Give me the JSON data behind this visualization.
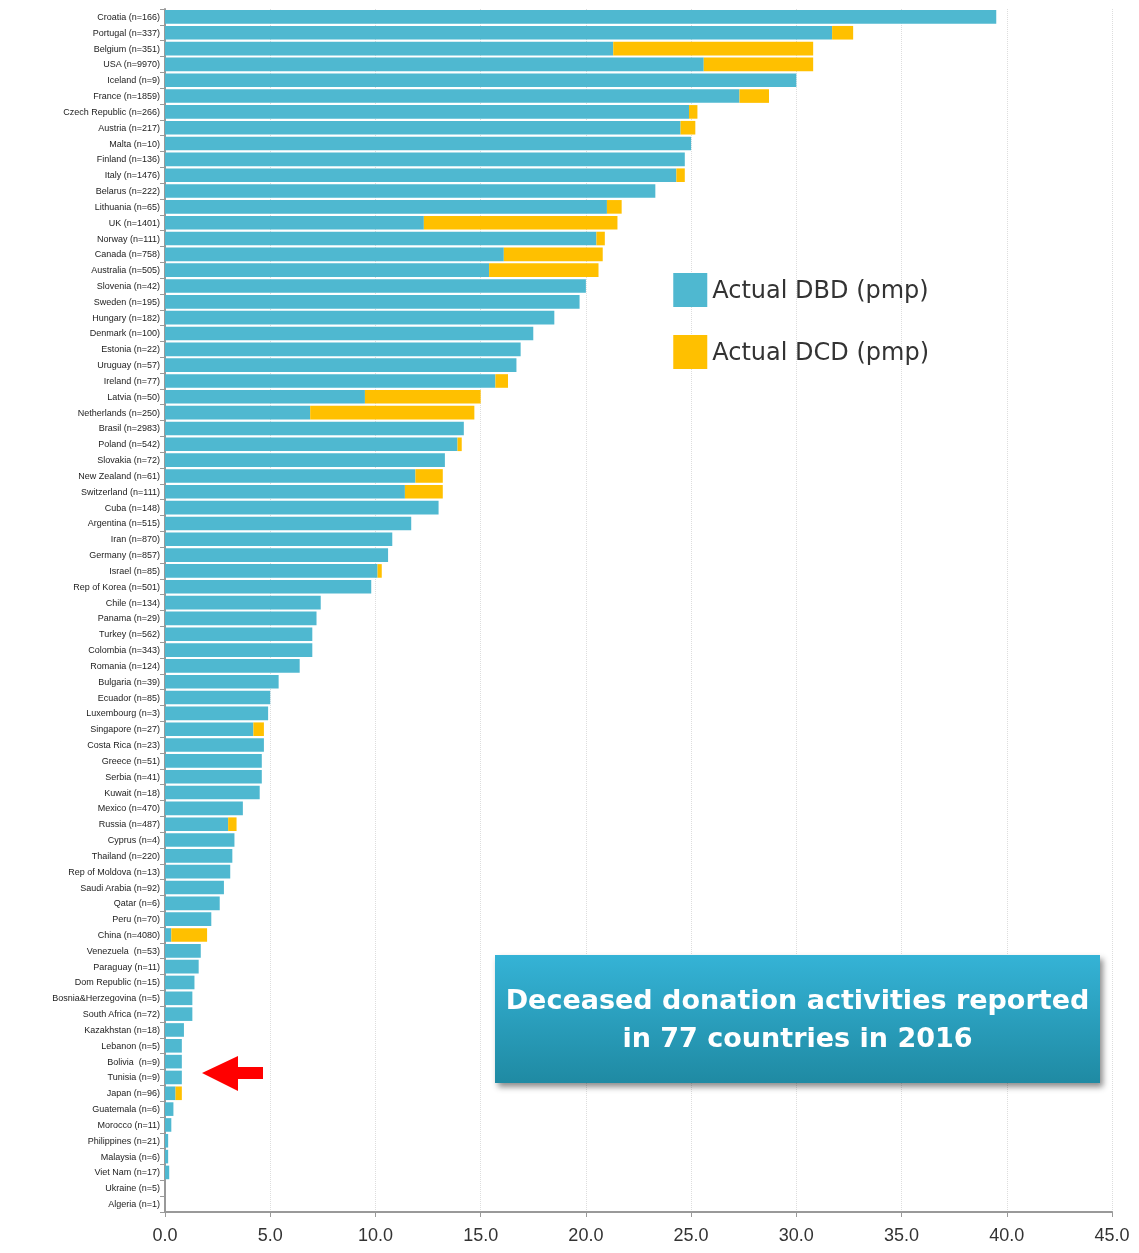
{
  "chart_data": {
    "type": "bar",
    "orientation": "horizontal",
    "stacked": true,
    "categories": [
      "Croatia (n=166)",
      "Portugal (n=337)",
      "Belgium (n=351)",
      "USA (n=9970)",
      "Iceland (n=9)",
      "France (n=1859)",
      "Czech Republic (n=266)",
      "Austria (n=217)",
      "Malta (n=10)",
      "Finland (n=136)",
      "Italy (n=1476)",
      "Belarus (n=222)",
      "Lithuania (n=65)",
      "UK (n=1401)",
      "Norway (n=111)",
      "Canada (n=758)",
      "Australia (n=505)",
      "Slovenia (n=42)",
      "Sweden (n=195)",
      "Hungary (n=182)",
      "Denmark (n=100)",
      "Estonia (n=22)",
      "Uruguay (n=57)",
      "Ireland (n=77)",
      "Latvia (n=50)",
      "Netherlands (n=250)",
      "Brasil (n=2983)",
      "Poland (n=542)",
      "Slovakia (n=72)",
      "New Zealand (n=61)",
      "Switzerland (n=111)",
      "Cuba (n=148)",
      "Argentina (n=515)",
      "Iran (n=870)",
      "Germany (n=857)",
      "Israel (n=85)",
      "Rep of Korea (n=501)",
      "Chile (n=134)",
      "Panama (n=29)",
      "Turkey (n=562)",
      "Colombia (n=343)",
      "Romania (n=124)",
      "Bulgaria (n=39)",
      "Ecuador (n=85)",
      "Luxembourg (n=3)",
      "Singapore (n=27)",
      "Costa Rica (n=23)",
      "Greece (n=51)",
      "Serbia (n=41)",
      "Kuwait (n=18)",
      "Mexico (n=470)",
      "Russia (n=487)",
      "Cyprus (n=4)",
      "Thailand (n=220)",
      "Rep of Moldova (n=13)",
      "Saudi Arabia (n=92)",
      "Qatar (n=6)",
      "Peru (n=70)",
      "China (n=4080)",
      "Venezuela  (n=53)",
      "Paraguay (n=11)",
      "Dom Republic (n=15)",
      "Bosnia&Herzegovina (n=5)",
      "South Africa (n=72)",
      "Kazakhstan (n=18)",
      "Lebanon (n=5)",
      "Bolivia  (n=9)",
      "Tunisia (n=9)",
      "Japan (n=96)",
      "Guatemala (n=6)",
      "Morocco (n=11)",
      "Philippines (n=21)",
      "Malaysia (n=6)",
      "Viet Nam (n=17)",
      "Ukraine (n=5)",
      "Algeria (n=1)"
    ],
    "series": [
      {
        "name": "Actual DBD (pmp)",
        "color": "#4fb8d0",
        "values": [
          39.5,
          31.7,
          21.3,
          25.6,
          30.0,
          27.3,
          24.9,
          24.5,
          25.0,
          24.7,
          24.3,
          23.3,
          21.0,
          12.3,
          20.5,
          16.1,
          15.4,
          20.0,
          19.7,
          18.5,
          17.5,
          16.9,
          16.7,
          15.7,
          9.5,
          6.9,
          14.2,
          13.9,
          13.3,
          11.9,
          11.4,
          13.0,
          11.7,
          10.8,
          10.6,
          10.1,
          9.8,
          7.4,
          7.2,
          7.0,
          7.0,
          6.4,
          5.4,
          5.0,
          4.9,
          4.2,
          4.7,
          4.6,
          4.6,
          4.5,
          3.7,
          3.0,
          3.3,
          3.2,
          3.1,
          2.8,
          2.6,
          2.2,
          0.3,
          1.7,
          1.6,
          1.4,
          1.3,
          1.3,
          0.9,
          0.8,
          0.8,
          0.8,
          0.5,
          0.4,
          0.3,
          0.15,
          0.15,
          0.2,
          0,
          0
        ]
      },
      {
        "name": "Actual DCD (pmp)",
        "color": "#ffc000",
        "values": [
          0,
          1.0,
          9.5,
          5.2,
          0,
          1.4,
          0.4,
          0.7,
          0,
          0,
          0.4,
          0,
          0.7,
          9.2,
          0.4,
          4.7,
          5.2,
          0,
          0,
          0,
          0,
          0,
          0,
          0.6,
          5.5,
          7.8,
          0,
          0.2,
          0,
          1.3,
          1.8,
          0,
          0,
          0,
          0,
          0.2,
          0,
          0,
          0,
          0,
          0,
          0,
          0,
          0,
          0,
          0.5,
          0,
          0,
          0,
          0,
          0,
          0.4,
          0,
          0,
          0,
          0,
          0,
          0,
          1.7,
          0,
          0,
          0,
          0,
          0,
          0,
          0,
          0,
          0,
          0.3,
          0,
          0,
          0,
          0,
          0,
          0,
          0
        ]
      }
    ],
    "xlim": [
      0,
      45
    ],
    "xticks": [
      {
        "value": 0,
        "label": "0.0"
      },
      {
        "value": 5,
        "label": "5.0"
      },
      {
        "value": 10,
        "label": "10.0"
      },
      {
        "value": 15,
        "label": "15.0"
      },
      {
        "value": 20,
        "label": "20.0"
      },
      {
        "value": 25,
        "label": "25.0"
      },
      {
        "value": 30,
        "label": "30.0"
      },
      {
        "value": 35,
        "label": "35.0"
      },
      {
        "value": 40,
        "label": "40.0"
      },
      {
        "value": 45,
        "label": "45.0"
      }
    ],
    "grid": "x",
    "legend": "top right",
    "annotations": [
      "Deceased donation activities reported in 77 countries in 2016"
    ]
  }
}
